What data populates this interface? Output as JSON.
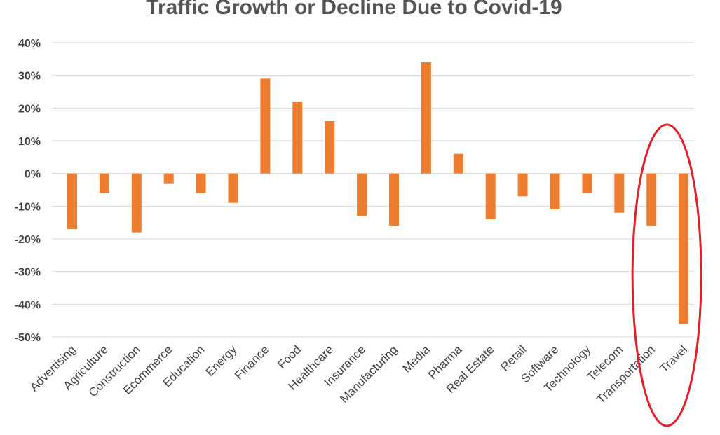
{
  "chart_data": {
    "type": "bar",
    "title": "Traffic Growth or Decline Due to Covid-19",
    "xlabel": "",
    "ylabel": "",
    "ylim": [
      -50,
      40
    ],
    "yticks": [
      40,
      30,
      20,
      10,
      0,
      -10,
      -20,
      -30,
      -40,
      -50
    ],
    "ytick_labels": [
      "40%",
      "30%",
      "20%",
      "10%",
      "0%",
      "-10%",
      "-20%",
      "-30%",
      "-40%",
      "-50%"
    ],
    "categories": [
      "Advertising",
      "Agriculture",
      "Construction",
      "Ecommerce",
      "Education",
      "Energy",
      "Finance",
      "Food",
      "Healthcare",
      "Insurance",
      "Manufacturing",
      "Media",
      "Pharma",
      "Real Estate",
      "Retail",
      "Software",
      "Technology",
      "Telecom",
      "Transportation",
      "Travel"
    ],
    "values": [
      -17,
      -6,
      -18,
      -3,
      -6,
      -9,
      29,
      22,
      16,
      -13,
      -16,
      34,
      6,
      -14,
      -7,
      -11,
      -6,
      -12,
      -16,
      -46
    ],
    "grid": true,
    "bar_color": "#ED7D31",
    "highlight": {
      "categories": [
        "Transportation",
        "Travel"
      ],
      "shape": "ellipse",
      "color": "#E0202A"
    }
  }
}
